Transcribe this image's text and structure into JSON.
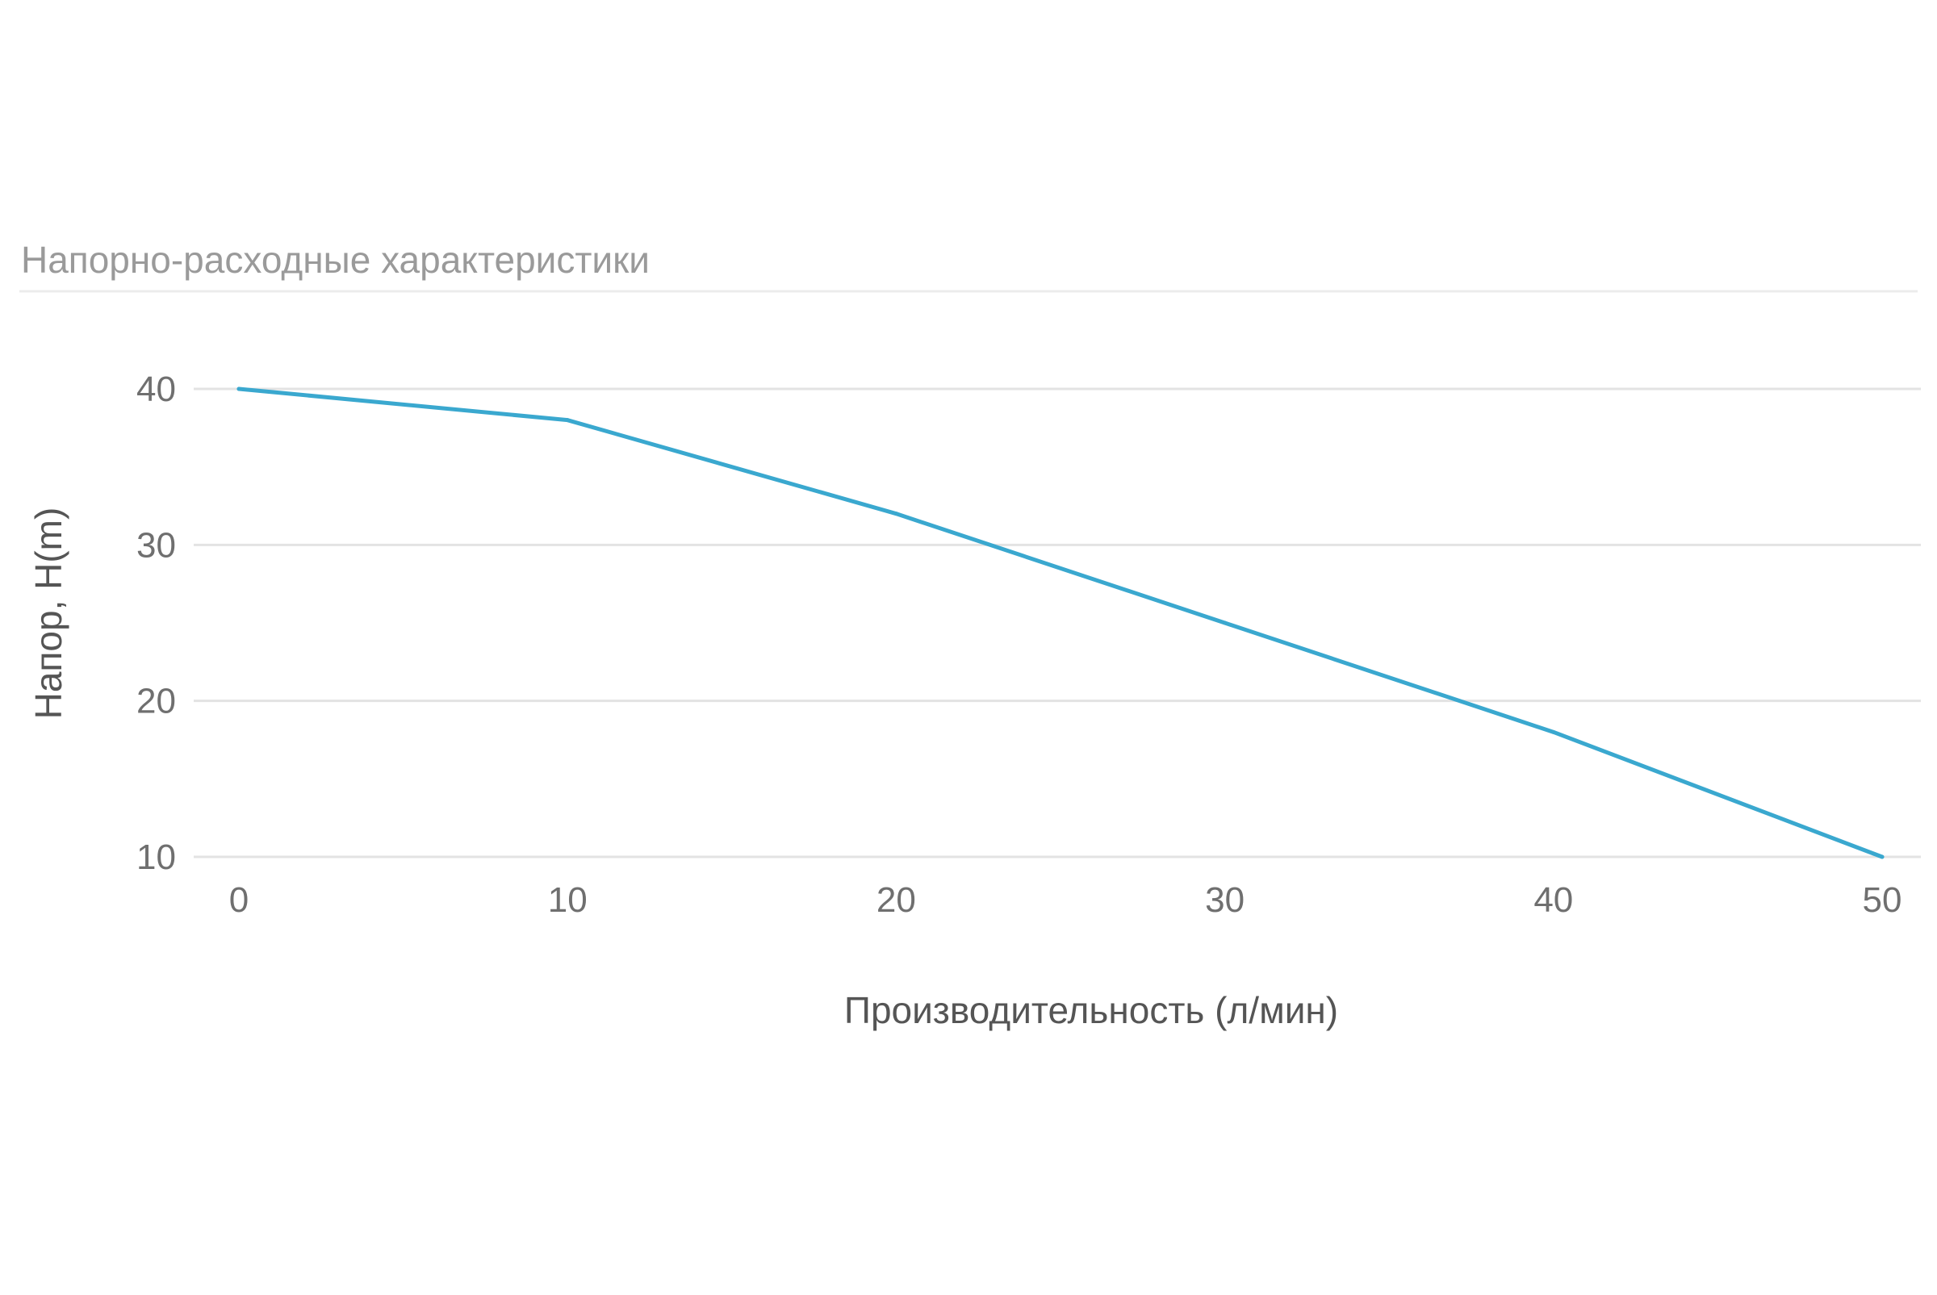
{
  "chart_data": {
    "type": "line",
    "title": "Напорно-расходные характеристики",
    "xlabel": "Производительность (л/мин)",
    "ylabel": "Напор, H(m)",
    "x": [
      0,
      10,
      20,
      30,
      40,
      50
    ],
    "series": [
      {
        "values": [
          40,
          38,
          32,
          25,
          18,
          10
        ]
      }
    ],
    "xlim": [
      0,
      50
    ],
    "ylim": [
      10,
      40
    ],
    "x_ticks": [
      "0",
      "10",
      "20",
      "30",
      "40",
      "50"
    ],
    "y_ticks": [
      "40",
      "30",
      "20",
      "10"
    ],
    "grid": true,
    "colors": {
      "line": "#3aa8cf",
      "grid": "#e3e3e3",
      "title": "#9a9a9a",
      "ticks": "#6f6f6f",
      "axis_label": "#555555"
    }
  }
}
